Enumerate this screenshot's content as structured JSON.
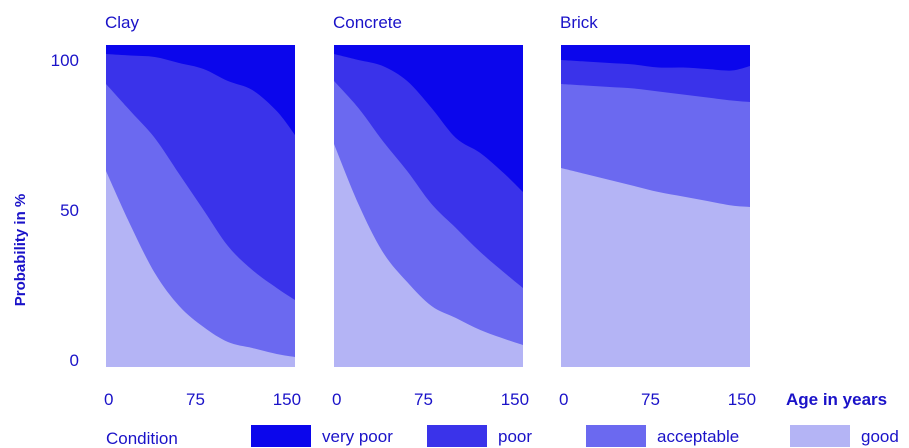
{
  "chart_data": {
    "type": "area",
    "stacked": true,
    "ylabel": "Probability in %",
    "xlabel": "Age in years",
    "ylim": [
      0,
      100
    ],
    "yticks": [
      0,
      50,
      100
    ],
    "xlim": [
      0,
      155
    ],
    "xticks": [
      0,
      75,
      150
    ],
    "grid": false,
    "legend": {
      "title": "Condition",
      "placement": "bottom",
      "entries": [
        {
          "name": "very poor",
          "color": "#0b06ec"
        },
        {
          "name": "poor",
          "color": "#3a33ea"
        },
        {
          "name": "acceptable",
          "color": "#6b69f0"
        },
        {
          "name": "good",
          "color": "#b4b4f5"
        }
      ]
    },
    "panels": [
      {
        "title": "Clay",
        "x": [
          0,
          20,
          40,
          60,
          80,
          100,
          120,
          140,
          155
        ],
        "series": [
          {
            "name": "good",
            "values": [
              63,
              45,
              29,
              18,
              11,
              6,
              4,
              2,
              1
            ]
          },
          {
            "name": "acceptable",
            "values": [
              29,
              38,
              45,
              44,
              39,
              32,
              26,
              22,
              19
            ]
          },
          {
            "name": "poor",
            "values": [
              10,
              18.5,
              27,
              37,
              47,
              55,
              60,
              59,
              55
            ]
          },
          {
            "name": "very poor",
            "values": [
              2,
              2.5,
              3,
              5,
              7,
              11,
              14,
              21,
              29
            ]
          }
        ]
      },
      {
        "title": "Concrete",
        "x": [
          0,
          20,
          40,
          60,
          80,
          100,
          120,
          140,
          155
        ],
        "series": [
          {
            "name": "good",
            "values": [
              72,
              52,
              36,
              26,
              18,
              14,
              10,
              7,
              5
            ]
          },
          {
            "name": "acceptable",
            "values": [
              21,
              32,
              37,
              37,
              34,
              30,
              26,
              22,
              19
            ]
          },
          {
            "name": "poor",
            "values": [
              9,
              16,
              25,
              30,
              32,
              30,
              33,
              33,
              32
            ]
          },
          {
            "name": "very poor",
            "values": [
              2,
              4,
              6,
              11,
              20,
              30,
              35,
              42,
              48
            ]
          }
        ]
      },
      {
        "title": "Brick",
        "x": [
          0,
          20,
          40,
          60,
          80,
          100,
          120,
          140,
          155
        ],
        "series": [
          {
            "name": "good",
            "values": [
              64,
              62,
              60,
              58,
              56,
              54.5,
              53,
              51.5,
              51
            ]
          },
          {
            "name": "acceptable",
            "values": [
              28,
              29.5,
              31,
              32.5,
              33.5,
              34,
              34.5,
              35,
              35
            ]
          },
          {
            "name": "poor",
            "values": [
              8,
              8,
              8,
              8,
              8,
              9,
              9.5,
              10,
              12
            ]
          },
          {
            "name": "very poor",
            "values": [
              4,
              4.5,
              5,
              5.5,
              6.5,
              6.5,
              7,
              7.5,
              6
            ]
          }
        ]
      }
    ]
  }
}
